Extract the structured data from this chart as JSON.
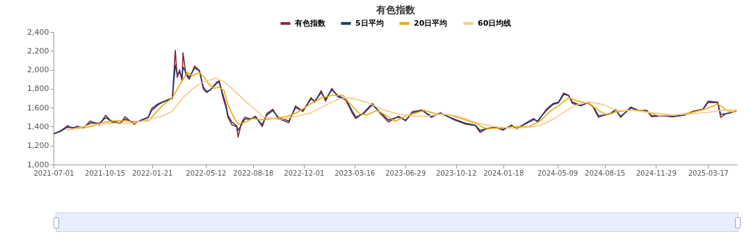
{
  "chart_data": {
    "type": "line",
    "title": "有色指数",
    "legend": "top",
    "grid": false,
    "marker": "none",
    "line_style": "solid",
    "xlim": [
      "2021-07-01",
      "2025-05-16"
    ],
    "xticks": [
      "2021-07-01",
      "2021-10-15",
      "2022-01-21",
      "2022-05-12",
      "2022-08-18",
      "2022-12-01",
      "2023-03-16",
      "2023-06-29",
      "2023-10-12",
      "2024-01-18",
      "2024-05-09",
      "2024-08-15",
      "2024-11-29",
      "2025-03-17"
    ],
    "ylim": [
      1000,
      2400
    ],
    "yticks": [
      {
        "value": 1000,
        "label": "1,000"
      },
      {
        "value": 1200,
        "label": "1,200"
      },
      {
        "value": 1400,
        "label": "1,400"
      },
      {
        "value": 1600,
        "label": "1,600"
      },
      {
        "value": 1800,
        "label": "1,800"
      },
      {
        "value": 2000,
        "label": "2,000"
      },
      {
        "value": 2200,
        "label": "2,200"
      },
      {
        "value": 2400,
        "label": "2,400"
      }
    ],
    "x": [
      "2021-07-01",
      "2021-07-15",
      "2021-07-30",
      "2021-08-10",
      "2021-08-20",
      "2021-09-01",
      "2021-09-15",
      "2021-10-04",
      "2021-10-17",
      "2021-10-29",
      "2021-11-16",
      "2021-11-26",
      "2021-12-15",
      "2021-12-29",
      "2022-01-13",
      "2022-01-20",
      "2022-02-02",
      "2022-02-11",
      "2022-02-25",
      "2022-03-04",
      "2022-03-10",
      "2022-03-14",
      "2022-03-19",
      "2022-03-24",
      "2022-03-26",
      "2022-04-01",
      "2022-04-08",
      "2022-04-19",
      "2022-04-29",
      "2022-05-07",
      "2022-05-14",
      "2022-05-22",
      "2022-06-04",
      "2022-06-09",
      "2022-06-16",
      "2022-06-23",
      "2022-06-27",
      "2022-07-05",
      "2022-07-15",
      "2022-07-18",
      "2022-07-25",
      "2022-08-01",
      "2022-08-13",
      "2022-08-23",
      "2022-09-06",
      "2022-09-15",
      "2022-09-28",
      "2022-10-09",
      "2022-10-31",
      "2022-11-14",
      "2022-11-29",
      "2022-12-16",
      "2022-12-24",
      "2023-01-06",
      "2023-01-15",
      "2023-01-28",
      "2023-02-09",
      "2023-02-26",
      "2023-03-12",
      "2023-03-19",
      "2023-04-04",
      "2023-04-22",
      "2023-05-09",
      "2023-05-25",
      "2023-06-15",
      "2023-06-30",
      "2023-07-14",
      "2023-08-03",
      "2023-08-22",
      "2023-09-10",
      "2023-10-08",
      "2023-11-02",
      "2023-11-21",
      "2023-12-01",
      "2023-12-15",
      "2024-01-03",
      "2024-01-17",
      "2024-02-04",
      "2024-02-15",
      "2024-02-29",
      "2024-03-21",
      "2024-03-29",
      "2024-04-16",
      "2024-04-30",
      "2024-05-11",
      "2024-05-22",
      "2024-06-01",
      "2024-06-09",
      "2024-06-27",
      "2024-07-11",
      "2024-07-22",
      "2024-08-02",
      "2024-08-13",
      "2024-08-26",
      "2024-09-07",
      "2024-09-17",
      "2024-10-08",
      "2024-10-23",
      "2024-11-10",
      "2024-11-20",
      "2024-12-13",
      "2025-01-03",
      "2025-01-26",
      "2025-02-15",
      "2025-03-06",
      "2025-03-17",
      "2025-04-06",
      "2025-04-12",
      "2025-04-22",
      "2025-05-06",
      "2025-05-14"
    ],
    "series": [
      {
        "name": "有色指数",
        "color": "#8e2436",
        "values": [
          1322,
          1355,
          1410,
          1380,
          1405,
          1385,
          1460,
          1420,
          1520,
          1450,
          1430,
          1505,
          1425,
          1470,
          1500,
          1590,
          1640,
          1660,
          1690,
          1700,
          2205,
          1920,
          2000,
          1880,
          2180,
          1950,
          1900,
          2040,
          1990,
          1800,
          1760,
          1790,
          1870,
          1885,
          1720,
          1600,
          1500,
          1420,
          1400,
          1290,
          1440,
          1500,
          1480,
          1510,
          1400,
          1535,
          1584,
          1486,
          1442,
          1620,
          1559,
          1706,
          1657,
          1780,
          1670,
          1804,
          1719,
          1682,
          1535,
          1486,
          1547,
          1645,
          1535,
          1449,
          1510,
          1461,
          1559,
          1576,
          1498,
          1547,
          1473,
          1425,
          1412,
          1339,
          1383,
          1393,
          1363,
          1417,
          1376,
          1424,
          1486,
          1449,
          1584,
          1645,
          1657,
          1755,
          1731,
          1645,
          1620,
          1657,
          1608,
          1498,
          1523,
          1535,
          1584,
          1498,
          1608,
          1571,
          1571,
          1505,
          1515,
          1505,
          1523,
          1564,
          1584,
          1670,
          1657,
          1498,
          1535,
          1554,
          1564
        ]
      },
      {
        "name": "5日平均",
        "color": "#1f3a6e",
        "values": [
          1325,
          1350,
          1395,
          1390,
          1395,
          1395,
          1440,
          1435,
          1495,
          1460,
          1440,
          1480,
          1440,
          1465,
          1495,
          1570,
          1630,
          1655,
          1685,
          1700,
          2050,
          1960,
          1970,
          1920,
          2030,
          1970,
          1920,
          2020,
          1990,
          1820,
          1770,
          1790,
          1860,
          1870,
          1750,
          1630,
          1520,
          1450,
          1410,
          1360,
          1420,
          1480,
          1480,
          1500,
          1420,
          1520,
          1570,
          1500,
          1460,
          1600,
          1570,
          1690,
          1670,
          1760,
          1690,
          1790,
          1730,
          1690,
          1560,
          1500,
          1540,
          1630,
          1550,
          1470,
          1500,
          1470,
          1545,
          1570,
          1510,
          1540,
          1480,
          1435,
          1415,
          1360,
          1380,
          1390,
          1370,
          1410,
          1385,
          1420,
          1475,
          1460,
          1570,
          1635,
          1650,
          1740,
          1730,
          1660,
          1625,
          1650,
          1615,
          1515,
          1520,
          1535,
          1575,
          1510,
          1595,
          1575,
          1570,
          1515,
          1515,
          1508,
          1520,
          1560,
          1580,
          1655,
          1655,
          1530,
          1535,
          1550,
          null
        ]
      },
      {
        "name": "20日平均",
        "color": "#f0a800",
        "x": [
          "2021-07-30",
          "2021-09-15",
          "2021-10-17",
          "2021-11-10",
          "2021-12-15",
          "2022-01-13",
          "2022-02-11",
          "2022-03-04",
          "2022-03-26",
          "2022-04-04",
          "2022-04-15",
          "2022-04-29",
          "2022-05-08",
          "2022-05-18",
          "2022-05-28",
          "2022-06-09",
          "2022-06-19",
          "2022-06-27",
          "2022-07-10",
          "2022-07-19",
          "2022-08-02",
          "2022-08-17",
          "2022-08-31",
          "2022-09-10",
          "2022-09-29",
          "2022-10-28",
          "2022-11-17",
          "2022-12-16",
          "2023-01-08",
          "2023-01-28",
          "2023-02-20",
          "2023-03-06",
          "2023-03-27",
          "2023-04-10",
          "2023-05-02",
          "2023-05-23",
          "2023-06-08",
          "2023-07-05",
          "2023-08-08",
          "2023-09-01",
          "2023-09-30",
          "2023-10-29",
          "2023-11-21",
          "2023-12-11",
          "2024-01-13",
          "2024-02-06",
          "2024-03-11",
          "2024-04-04",
          "2024-04-23",
          "2024-05-11",
          "2024-06-02",
          "2024-06-19",
          "2024-07-14",
          "2024-08-02",
          "2024-08-19",
          "2024-09-09",
          "2024-10-02",
          "2024-10-31",
          "2024-12-05",
          "2025-01-11",
          "2025-02-09",
          "2025-03-10",
          "2025-04-06",
          "2025-04-25",
          "2025-05-06",
          "2025-05-14"
        ],
        "values": [
          1368,
          1400,
          1450,
          1466,
          1455,
          1460,
          1620,
          1706,
          1900,
          1971,
          1940,
          1971,
          1927,
          1853,
          1804,
          1816,
          1780,
          1633,
          1486,
          1425,
          1449,
          1486,
          1474,
          1474,
          1486,
          1510,
          1547,
          1645,
          1706,
          1731,
          1731,
          1645,
          1535,
          1523,
          1572,
          1510,
          1456,
          1523,
          1571,
          1535,
          1523,
          1474,
          1437,
          1383,
          1383,
          1400,
          1400,
          1461,
          1559,
          1620,
          1706,
          1670,
          1645,
          1571,
          1523,
          1559,
          1571,
          1571,
          1515,
          1523,
          1547,
          1584,
          1640,
          1571,
          1554,
          1559
        ]
      },
      {
        "name": "60日均线",
        "color": "#f5c98a",
        "x": [
          "2021-07-30",
          "2021-09-20",
          "2021-11-08",
          "2021-12-15",
          "2022-01-13",
          "2022-02-11",
          "2022-03-03",
          "2022-03-26",
          "2022-04-19",
          "2022-05-08",
          "2022-06-02",
          "2022-06-20",
          "2022-07-10",
          "2022-08-02",
          "2022-08-27",
          "2022-09-06",
          "2022-10-09",
          "2022-11-17",
          "2022-12-16",
          "2023-01-18",
          "2023-02-13",
          "2023-03-06",
          "2023-04-10",
          "2023-05-17",
          "2023-06-15",
          "2023-07-14",
          "2023-08-12",
          "2023-09-15",
          "2023-10-18",
          "2023-11-26",
          "2024-01-01",
          "2024-02-06",
          "2024-02-29",
          "2024-04-04",
          "2024-05-03",
          "2024-06-01",
          "2024-06-19",
          "2024-07-14",
          "2024-08-12",
          "2024-09-09",
          "2024-10-13",
          "2024-11-20",
          "2025-01-03",
          "2025-02-09",
          "2025-03-16",
          "2025-04-13",
          "2025-05-14"
        ],
        "values": [
          1363,
          1425,
          1437,
          1437,
          1474,
          1510,
          1559,
          1706,
          1816,
          1873,
          1910,
          1873,
          1780,
          1670,
          1559,
          1510,
          1474,
          1510,
          1547,
          1633,
          1694,
          1706,
          1657,
          1571,
          1535,
          1510,
          1510,
          1535,
          1510,
          1437,
          1400,
          1383,
          1388,
          1412,
          1486,
          1584,
          1633,
          1662,
          1633,
          1571,
          1571,
          1547,
          1523,
          1535,
          1552,
          1571,
          1578
        ]
      }
    ]
  }
}
